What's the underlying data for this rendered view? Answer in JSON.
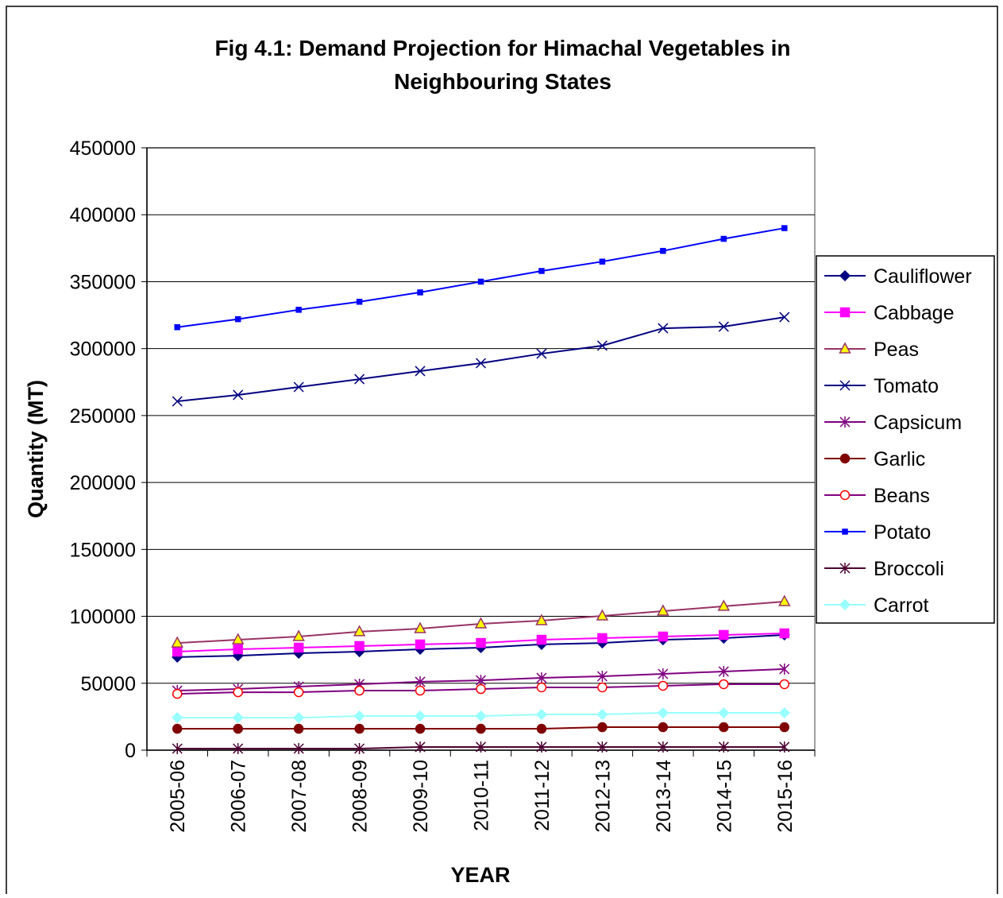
{
  "chart_data": {
    "type": "line",
    "title": [
      "Fig 4.1: Demand Projection for Himachal Vegetables in",
      "Neighbouring States"
    ],
    "y_label": "Quantity (MT)",
    "x_label": "YEAR",
    "categories": [
      "2005-06",
      "2006-07",
      "2007-08",
      "2008-09",
      "2009-10",
      "2010-11",
      "2011-12",
      "2012-13",
      "2013-14",
      "2014-15",
      "2015-16"
    ],
    "ylim": [
      0,
      450000
    ],
    "yticks": [
      0,
      50000,
      100000,
      150000,
      200000,
      250000,
      300000,
      350000,
      400000,
      450000
    ],
    "grid": true,
    "legend": "right",
    "series": [
      {
        "name": "Cauliflower",
        "color": "#000080",
        "marker": "diamond",
        "values": [
          69500,
          70600,
          72400,
          73600,
          75400,
          76600,
          79000,
          80100,
          82500,
          83700,
          86100
        ]
      },
      {
        "name": "Cabbage",
        "color": "#ff00ff",
        "marker": "square",
        "values": [
          73600,
          75400,
          76600,
          77800,
          79000,
          80100,
          82500,
          83700,
          84900,
          86100,
          87300
        ]
      },
      {
        "name": "Peas",
        "color": "#993366",
        "marker": "triangle",
        "marker_fill": "#ffff00",
        "values": [
          80100,
          82500,
          84900,
          88500,
          90800,
          94400,
          96800,
          100300,
          103900,
          107500,
          111000
        ]
      },
      {
        "name": "Tomato",
        "color": "#000080",
        "marker": "x",
        "values": [
          260600,
          265400,
          271300,
          277200,
          283200,
          289100,
          296200,
          302200,
          315200,
          316400,
          323500
        ]
      },
      {
        "name": "Capsicum",
        "color": "#800080",
        "marker": "star",
        "values": [
          44500,
          45700,
          47500,
          49300,
          51100,
          52200,
          54000,
          55200,
          57000,
          58800,
          60600
        ]
      },
      {
        "name": "Garlic",
        "color": "#800000",
        "marker": "circle",
        "marker_fill": "#800000",
        "values": [
          16000,
          16000,
          16000,
          16000,
          16000,
          16000,
          16000,
          17200,
          17200,
          17200,
          17200
        ]
      },
      {
        "name": "Beans",
        "color": "#800080",
        "marker": "circle",
        "marker_stroke": "#ff0000",
        "marker_fill": "#ffffff",
        "values": [
          42100,
          43300,
          43300,
          44500,
          44500,
          45700,
          46900,
          46900,
          48100,
          49300,
          49300
        ]
      },
      {
        "name": "Potato",
        "color": "#0000ff",
        "marker": "smallsquare",
        "values": [
          316000,
          322000,
          329000,
          335000,
          342000,
          350000,
          358000,
          365000,
          373000,
          382000,
          390000
        ]
      },
      {
        "name": "Broccoli",
        "color": "#4b0030",
        "marker": "star",
        "values": [
          1200,
          1200,
          1200,
          1200,
          2400,
          2400,
          2400,
          2400,
          2400,
          2400,
          2400
        ]
      },
      {
        "name": "Carrot",
        "color": "#99ffff",
        "marker": "diamond",
        "values": [
          24300,
          24300,
          24300,
          25500,
          25500,
          25500,
          26700,
          26700,
          27900,
          27900,
          27900
        ]
      }
    ]
  }
}
